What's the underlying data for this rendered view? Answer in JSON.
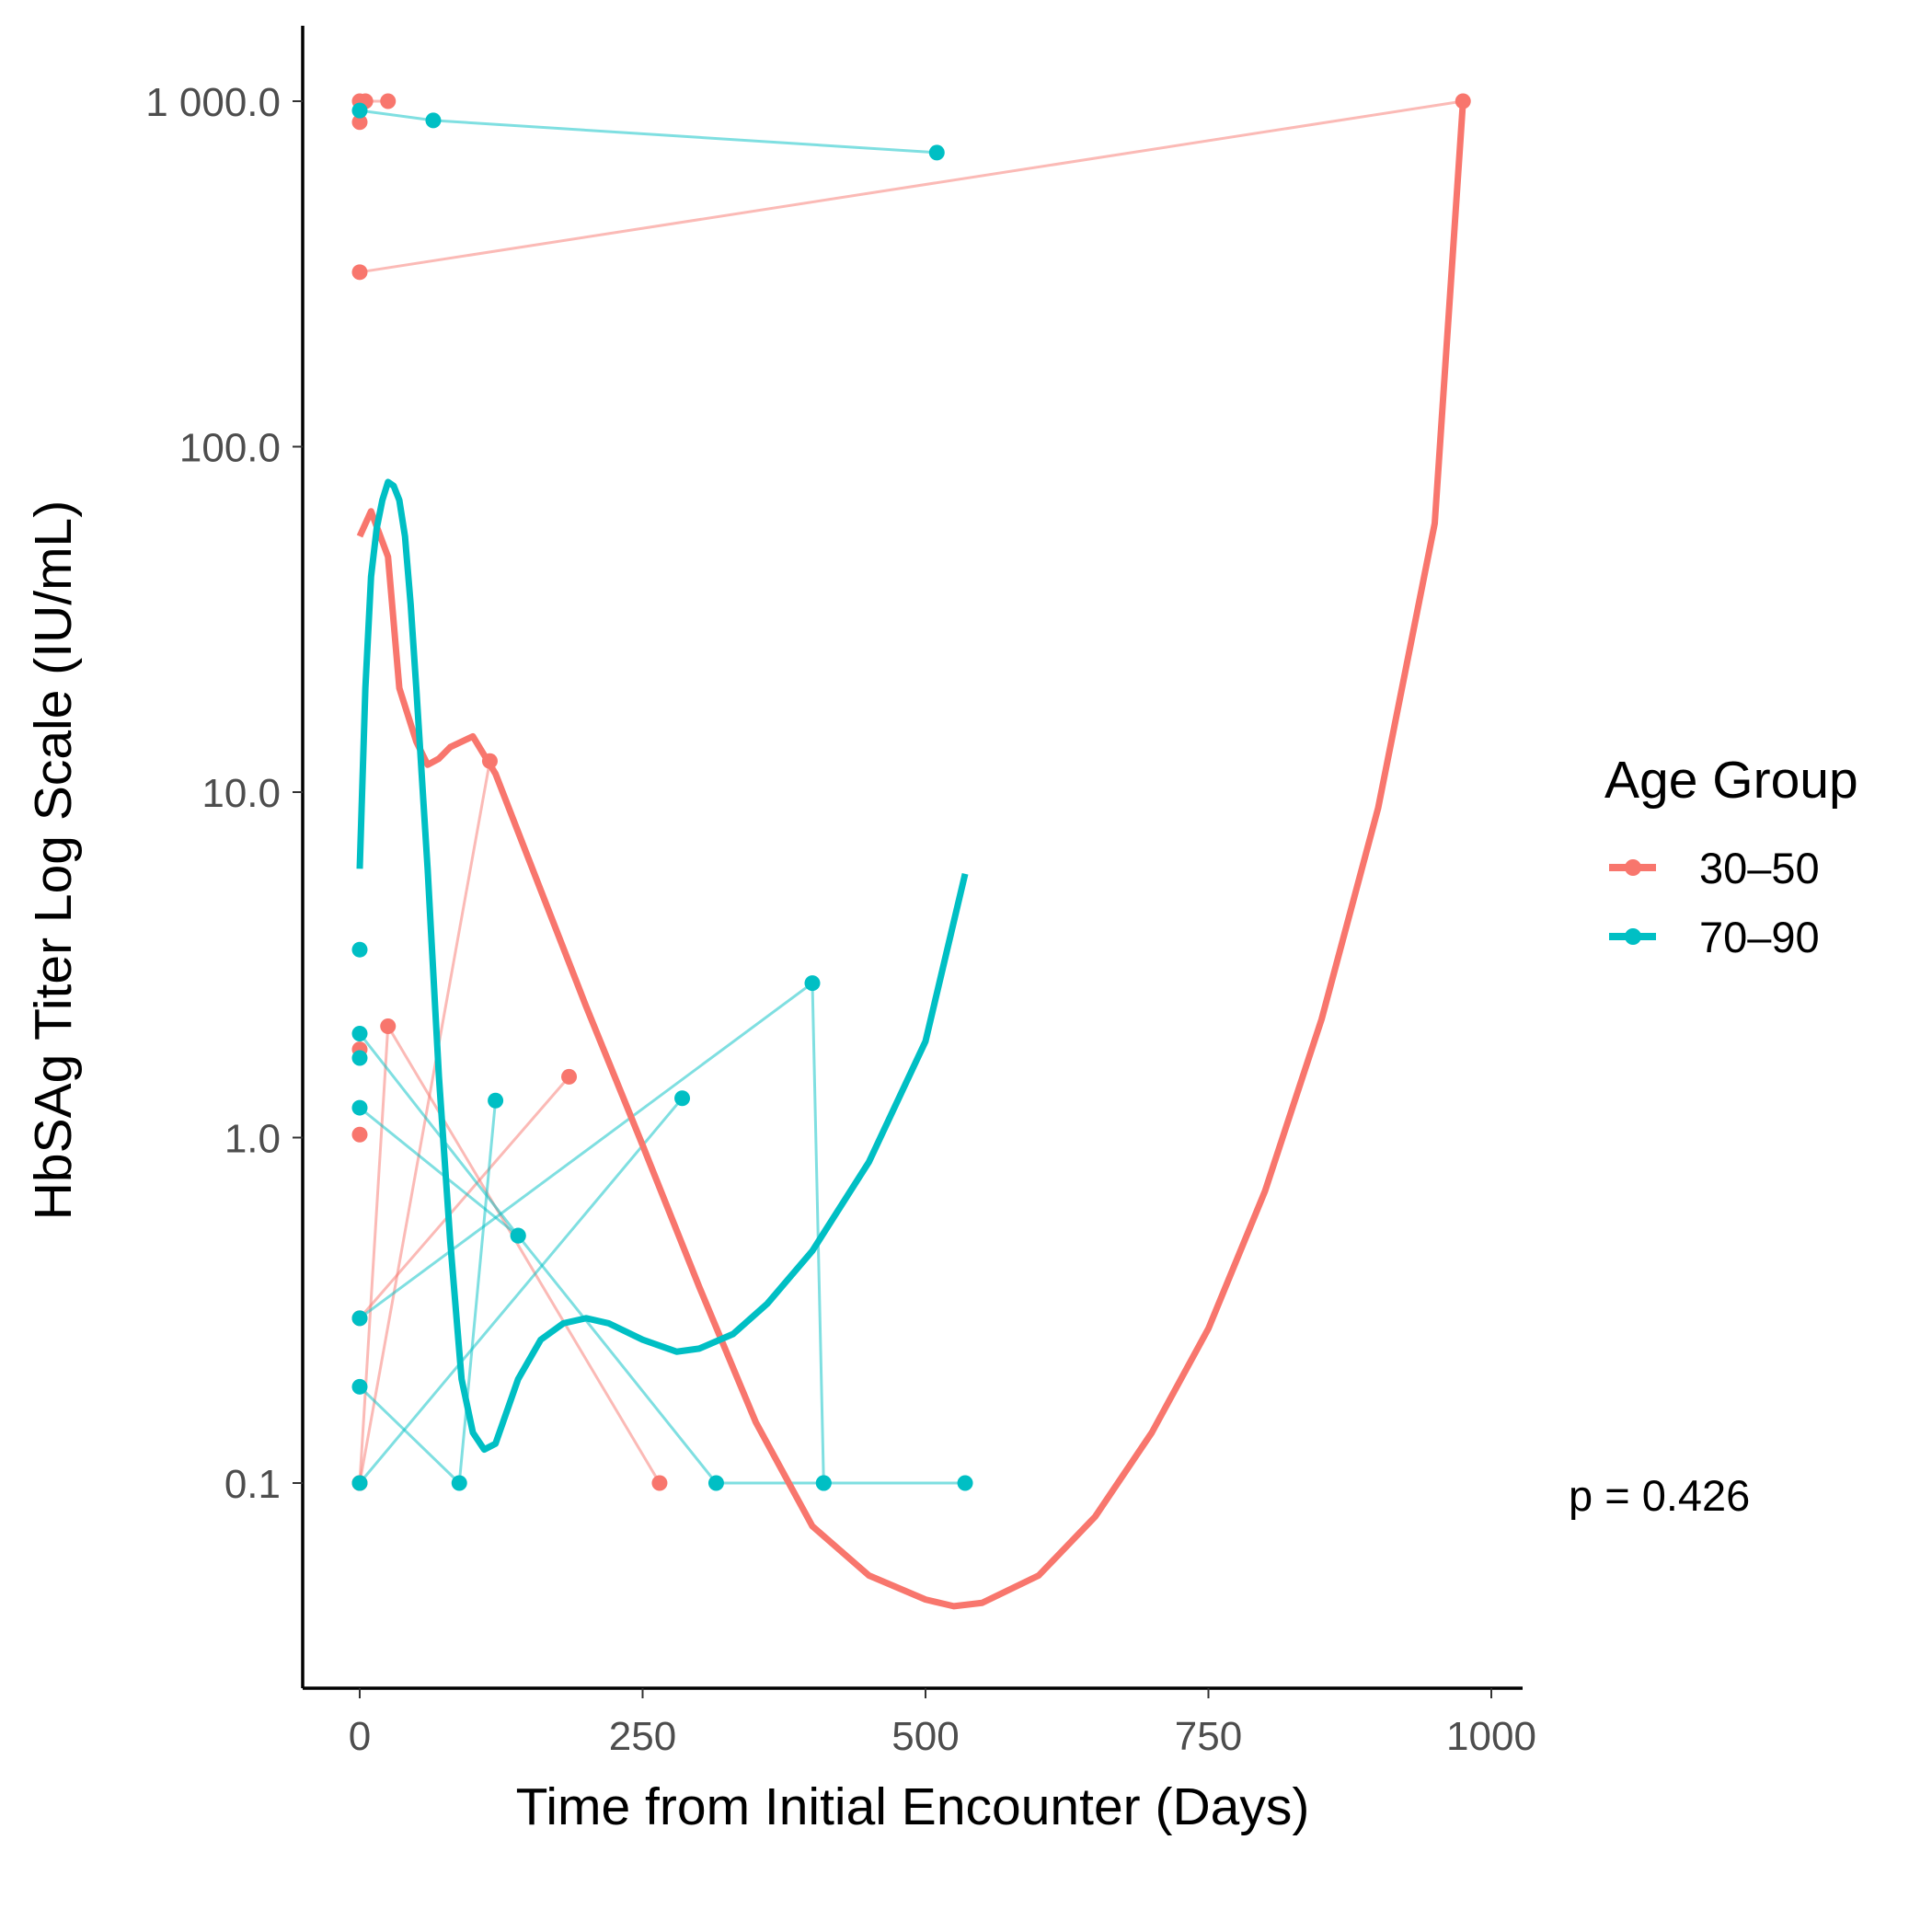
{
  "chart_data": {
    "type": "line",
    "xlabel": "Time from Initial Encounter (Days)",
    "ylabel": "HbSAg Titer Log Scale (IU/mL)",
    "y_scale": "log10",
    "xlim": [
      -20,
      1020
    ],
    "ylim": [
      0.025,
      1700
    ],
    "x_ticks": [
      0,
      250,
      500,
      750,
      1000
    ],
    "x_tick_labels": [
      "0",
      "250",
      "500",
      "750",
      "1000"
    ],
    "y_ticks": [
      0.1,
      1,
      10,
      100,
      1000
    ],
    "y_tick_labels": [
      "0.1",
      "1.0",
      "10.0",
      "100.0",
      "1 000.0"
    ],
    "grid": false,
    "legend": {
      "title": "Age Group",
      "position": "right",
      "entries": [
        {
          "label": "30–50",
          "color": "#F8766D"
        },
        {
          "label": "70–90",
          "color": "#00BFC4"
        }
      ]
    },
    "annotation": "p = 0.426",
    "series": [
      {
        "name": "30–50",
        "color": "#F8766D",
        "patients": [
          [
            [
              0,
              1000
            ],
            [
              5,
              1000
            ],
            [
              25,
              1000
            ]
          ],
          [
            [
              0,
              870
            ]
          ],
          [
            [
              0,
              320
            ],
            [
              975,
              1000
            ]
          ],
          [
            [
              0,
              1.8
            ]
          ],
          [
            [
              0,
              1.02
            ]
          ],
          [
            [
              0,
              0.3
            ],
            [
              185,
              1.5
            ]
          ],
          [
            [
              0,
              0.1
            ],
            [
              25,
              2.1
            ],
            [
              265,
              0.1
            ]
          ],
          [
            [
              0,
              0.1
            ],
            [
              115,
              12.3
            ]
          ]
        ],
        "trend": [
          [
            0,
            55
          ],
          [
            10,
            65
          ],
          [
            25,
            48
          ],
          [
            35,
            20
          ],
          [
            50,
            14
          ],
          [
            60,
            12
          ],
          [
            70,
            12.5
          ],
          [
            80,
            13.5
          ],
          [
            100,
            14.5
          ],
          [
            120,
            11.3
          ],
          [
            160,
            5.2
          ],
          [
            200,
            2.4
          ],
          [
            250,
            0.95
          ],
          [
            300,
            0.37
          ],
          [
            350,
            0.15
          ],
          [
            400,
            0.075
          ],
          [
            450,
            0.054
          ],
          [
            500,
            0.046
          ],
          [
            525,
            0.044
          ],
          [
            550,
            0.045
          ],
          [
            600,
            0.054
          ],
          [
            650,
            0.08
          ],
          [
            700,
            0.14
          ],
          [
            750,
            0.28
          ],
          [
            800,
            0.7
          ],
          [
            850,
            2.2
          ],
          [
            900,
            9
          ],
          [
            950,
            60
          ],
          [
            975,
            1000
          ]
        ]
      },
      {
        "name": "70–90",
        "color": "#00BFC4",
        "patients": [
          [
            [
              0,
              940
            ],
            [
              65,
              880
            ],
            [
              510,
              710
            ]
          ],
          [
            [
              0,
              3.5
            ]
          ],
          [
            [
              0,
              2.0
            ],
            [
              140,
              0.52
            ]
          ],
          [
            [
              0,
              1.7
            ]
          ],
          [
            [
              0,
              1.22
            ],
            [
              140,
              0.52
            ],
            [
              315,
              0.1
            ],
            [
              410,
              0.1
            ],
            [
              535,
              0.1
            ]
          ],
          [
            [
              0,
              0.3
            ],
            [
              400,
              2.8
            ],
            [
              410,
              0.1
            ]
          ],
          [
            [
              0,
              0.19
            ],
            [
              88,
              0.1
            ],
            [
              120,
              1.28
            ]
          ],
          [
            [
              0,
              0.1
            ],
            [
              285,
              1.3
            ]
          ]
        ],
        "trend": [
          [
            0,
            6
          ],
          [
            5,
            20
          ],
          [
            10,
            42
          ],
          [
            15,
            58
          ],
          [
            20,
            70
          ],
          [
            25,
            79
          ],
          [
            30,
            77
          ],
          [
            35,
            70
          ],
          [
            40,
            55
          ],
          [
            45,
            35
          ],
          [
            50,
            20
          ],
          [
            60,
            6
          ],
          [
            70,
            1.5
          ],
          [
            80,
            0.5
          ],
          [
            90,
            0.2
          ],
          [
            100,
            0.14
          ],
          [
            110,
            0.125
          ],
          [
            120,
            0.13
          ],
          [
            140,
            0.2
          ],
          [
            160,
            0.26
          ],
          [
            180,
            0.29
          ],
          [
            200,
            0.3
          ],
          [
            220,
            0.29
          ],
          [
            250,
            0.26
          ],
          [
            280,
            0.24
          ],
          [
            300,
            0.245
          ],
          [
            330,
            0.27
          ],
          [
            360,
            0.33
          ],
          [
            400,
            0.47
          ],
          [
            450,
            0.85
          ],
          [
            500,
            1.9
          ],
          [
            535,
            5.8
          ]
        ]
      }
    ]
  }
}
